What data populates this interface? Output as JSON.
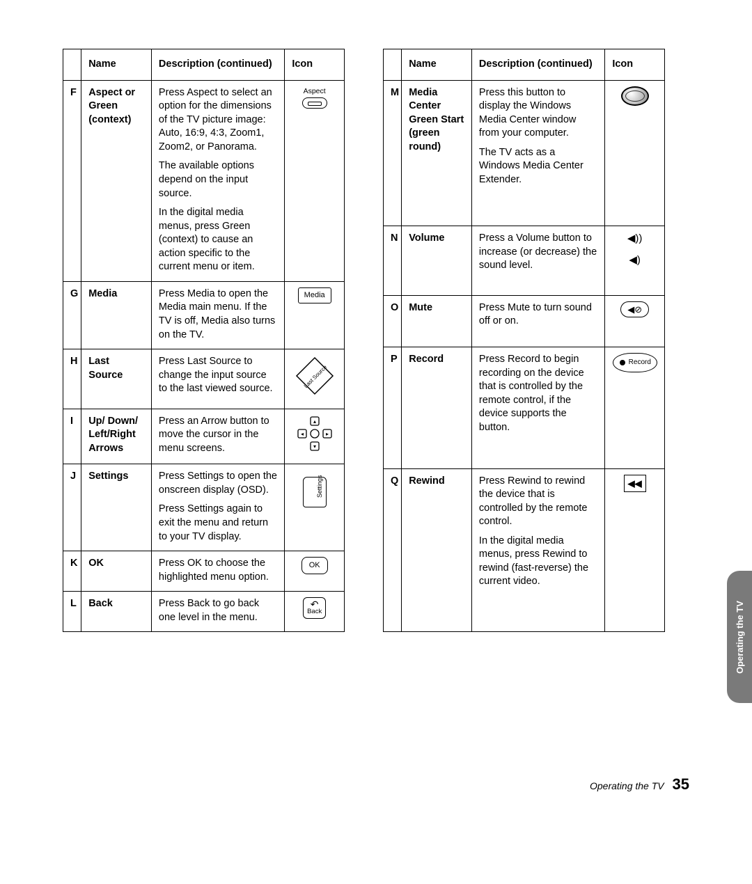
{
  "headers": {
    "name": "Name",
    "desc": "Description (continued)",
    "icon": "Icon"
  },
  "left": [
    {
      "letter": "F",
      "name": "Aspect or Green (context)",
      "desc": [
        "Press Aspect to select an option for the dimensions of the TV picture image: Auto, 16:9, 4:3, Zoom1, Zoom2, or Panorama.",
        "The available options depend on the input source.",
        "In the digital media menus, press Green (context) to cause an action specific to the current menu or item."
      ],
      "icon": "aspect",
      "iconLabel": "Aspect"
    },
    {
      "letter": "G",
      "name": "Media",
      "desc": [
        "Press Media to open the Media main menu. If the TV is off, Media also turns on the TV."
      ],
      "icon": "media",
      "iconLabel": "Media"
    },
    {
      "letter": "H",
      "name": "Last Source",
      "desc": [
        "Press Last Source to change the input source to the last viewed source."
      ],
      "icon": "lastsource",
      "iconLabel": "Last Source"
    },
    {
      "letter": "I",
      "name": "Up/ Down/ Left/Right Arrows",
      "desc": [
        "Press an Arrow button to move the cursor in the menu screens."
      ],
      "icon": "arrows"
    },
    {
      "letter": "J",
      "name": "Settings",
      "desc": [
        "Press Settings to open the onscreen display (OSD).",
        "Press Settings again to exit the menu and return to your TV display."
      ],
      "icon": "settings",
      "iconLabel": "Settings"
    },
    {
      "letter": "K",
      "name": "OK",
      "desc": [
        "Press OK to choose the highlighted menu option."
      ],
      "icon": "ok",
      "iconLabel": "OK"
    },
    {
      "letter": "L",
      "name": "Back",
      "desc": [
        "Press Back to go back one level in the menu."
      ],
      "icon": "back",
      "iconLabel": "Back"
    }
  ],
  "right": [
    {
      "letter": "M",
      "name": "Media Center Green Start (green round)",
      "desc": [
        "Press this button to display the Windows Media Center window from your computer.",
        "The TV acts as a Windows Media Center Extender."
      ],
      "icon": "mcenter"
    },
    {
      "letter": "N",
      "name": "Volume",
      "desc": [
        "Press a Volume button to increase (or decrease) the sound level."
      ],
      "icon": "volume"
    },
    {
      "letter": "O",
      "name": "Mute",
      "desc": [
        "Press Mute to turn sound off or on."
      ],
      "icon": "mute"
    },
    {
      "letter": "P",
      "name": "Record",
      "desc": [
        "Press Record to begin recording on the device that is controlled by the remote control, if the device supports the button."
      ],
      "icon": "record",
      "iconLabel": "Record"
    },
    {
      "letter": "Q",
      "name": "Rewind",
      "desc": [
        "Press Rewind to rewind the device that is controlled by the remote control.",
        "In the digital media menus, press Rewind to rewind (fast-reverse) the current video."
      ],
      "icon": "rewind"
    }
  ],
  "sidetab": "Operating the TV",
  "footer": {
    "title": "Operating the TV",
    "page": "35"
  }
}
